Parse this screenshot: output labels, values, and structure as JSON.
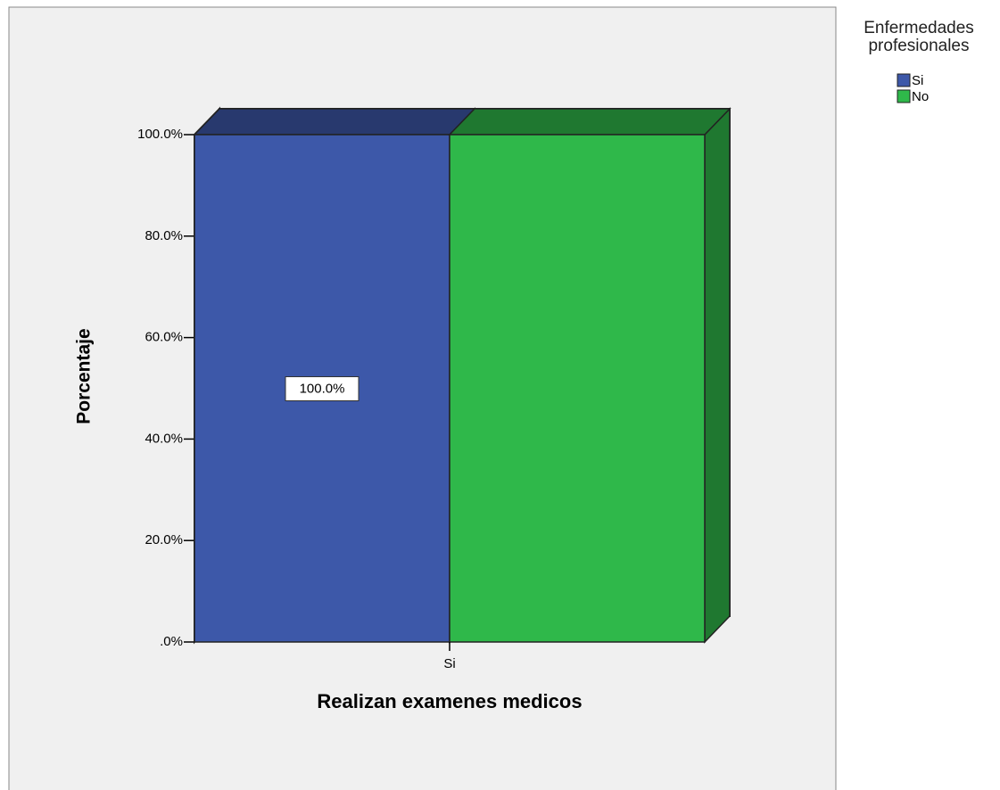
{
  "chart_data": {
    "type": "bar3d",
    "x_label": "Realizan examenes medicos",
    "y_label": "Porcentaje",
    "legend_title": "Enfermedades profesionales",
    "categories": [
      "Si"
    ],
    "series": [
      {
        "name": "Si",
        "color": "#3d58a9",
        "values": [
          100
        ],
        "value_labels": [
          "100.0%"
        ]
      },
      {
        "name": "No",
        "color": "#2fb84a",
        "values": [
          100
        ]
      }
    ],
    "ylim": [
      0,
      100
    ],
    "yticks": [
      {
        "value": 0,
        "label": ".0%"
      },
      {
        "value": 20,
        "label": "20.0%"
      },
      {
        "value": 40,
        "label": "40.0%"
      },
      {
        "value": 60,
        "label": "60.0%"
      },
      {
        "value": 80,
        "label": "80.0%"
      },
      {
        "value": 100,
        "label": "100.0%"
      }
    ]
  }
}
